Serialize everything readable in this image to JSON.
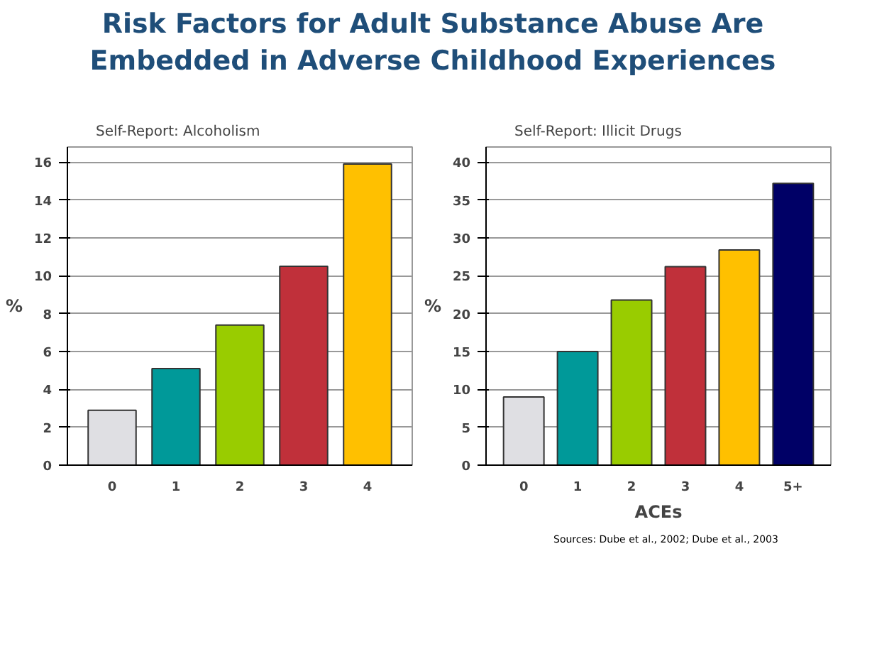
{
  "chart_data": [
    {
      "type": "bar",
      "title": "Risk Factors for Adult Substance Abuse Are Embedded in Adverse Childhood Experiences",
      "subtitle": "Self-Report:  Alcoholism",
      "ylabel": "%",
      "categories": [
        "0",
        "1",
        "2",
        "3",
        "4"
      ],
      "values": [
        2.9,
        5.1,
        7.4,
        10.5,
        15.9
      ],
      "colors": [
        "#dfdfe3",
        "#009999",
        "#99cc00",
        "#c0303a",
        "#ffc000"
      ],
      "ylim": [
        0,
        16.8
      ],
      "yticks": [
        0,
        2,
        4,
        6,
        8,
        10,
        12,
        14,
        16
      ],
      "grid": "y"
    },
    {
      "type": "bar",
      "title": "Self-Report:  Illicit Drugs",
      "ylabel": "%",
      "xlabel": "ACEs",
      "categories": [
        "0",
        "1",
        "2",
        "3",
        "4",
        "5+"
      ],
      "values": [
        9,
        15,
        21.8,
        26.2,
        28.4,
        37.2
      ],
      "colors": [
        "#dfdfe3",
        "#009999",
        "#99cc00",
        "#c0303a",
        "#ffc000",
        "#000066"
      ],
      "ylim": [
        0,
        42
      ],
      "yticks": [
        0,
        5,
        10,
        15,
        20,
        25,
        30,
        35,
        40
      ],
      "grid": "y",
      "annotations": [
        "Sources: Dube et al., 2002; Dube et al., 2003"
      ]
    }
  ]
}
